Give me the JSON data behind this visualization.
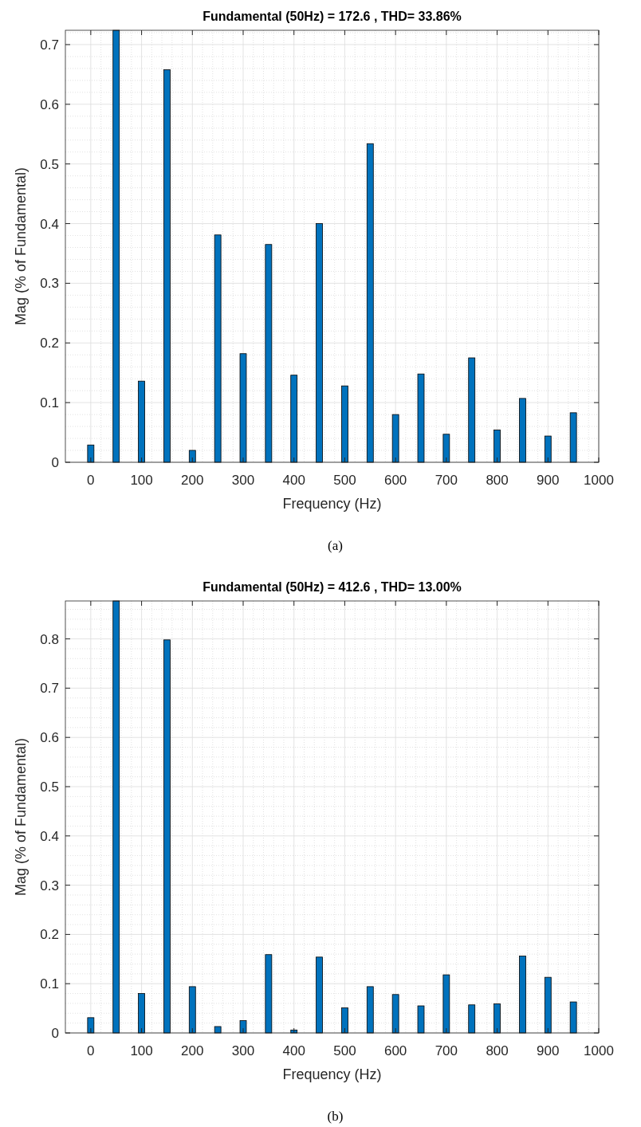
{
  "chart_data": [
    {
      "type": "bar",
      "title": "Fundamental (50Hz) = 172.6 , THD= 33.86%",
      "xlabel": "Frequency (Hz)",
      "ylabel": "Mag (% of Fundamental)",
      "annotations": [
        "(a)"
      ],
      "x": [
        0,
        50,
        100,
        150,
        200,
        250,
        300,
        350,
        400,
        450,
        500,
        550,
        600,
        650,
        700,
        750,
        800,
        850,
        900,
        950
      ],
      "values": [
        0.029,
        0.724,
        0.136,
        0.658,
        0.02,
        0.381,
        0.182,
        0.365,
        0.146,
        0.4,
        0.128,
        0.534,
        0.08,
        0.148,
        0.047,
        0.175,
        0.054,
        0.107,
        0.044,
        0.083
      ],
      "color": "#0072bd",
      "xlim": [
        -50,
        1000
      ],
      "xticks": [
        0,
        100,
        200,
        300,
        400,
        500,
        600,
        700,
        800,
        900,
        1000
      ],
      "ylim": [
        0,
        0.724
      ],
      "yticks": [
        0,
        0.1,
        0.2,
        0.3,
        0.4,
        0.5,
        0.6,
        0.7
      ],
      "grid": true
    },
    {
      "type": "bar",
      "title": "Fundamental (50Hz) = 412.6 , THD= 13.00%",
      "xlabel": "Frequency (Hz)",
      "ylabel": "Mag (% of Fundamental)",
      "annotations": [
        "(b)"
      ],
      "x": [
        0,
        50,
        100,
        150,
        200,
        250,
        300,
        350,
        400,
        450,
        500,
        550,
        600,
        650,
        700,
        750,
        800,
        850,
        900,
        950
      ],
      "values": [
        0.031,
        0.877,
        0.08,
        0.798,
        0.094,
        0.013,
        0.025,
        0.159,
        0.006,
        0.154,
        0.051,
        0.094,
        0.078,
        0.055,
        0.118,
        0.057,
        0.059,
        0.156,
        0.113,
        0.063
      ],
      "color": "#0072bd",
      "xlim": [
        -50,
        1000
      ],
      "xticks": [
        0,
        100,
        200,
        300,
        400,
        500,
        600,
        700,
        800,
        900,
        1000
      ],
      "ylim": [
        0,
        0.877
      ],
      "yticks": [
        0,
        0.1,
        0.2,
        0.3,
        0.4,
        0.5,
        0.6,
        0.7,
        0.8
      ],
      "grid": true
    }
  ]
}
